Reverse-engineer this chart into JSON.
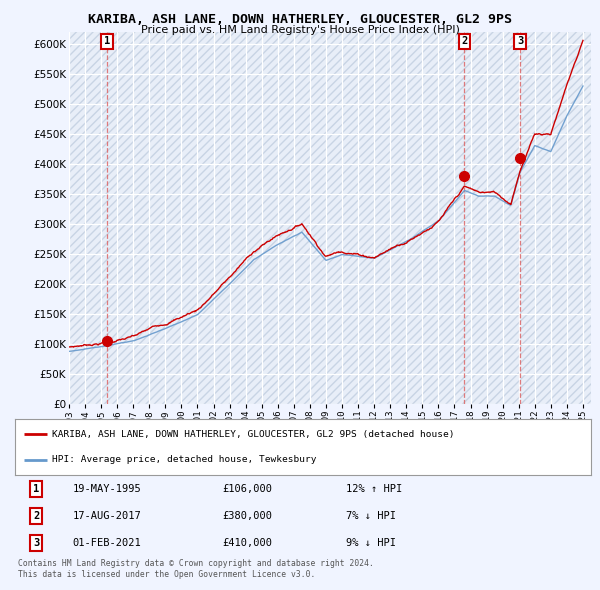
{
  "title": "KARIBA, ASH LANE, DOWN HATHERLEY, GLOUCESTER, GL2 9PS",
  "subtitle": "Price paid vs. HM Land Registry's House Price Index (HPI)",
  "background_color": "#f0f4ff",
  "plot_bg_color": "#e8eef8",
  "hatch_color": "#c8d4e4",
  "grid_color": "#ffffff",
  "sale_prices": [
    106000,
    380000,
    410000
  ],
  "sale_labels": [
    "1",
    "2",
    "3"
  ],
  "sale_year_floats": [
    1995.38,
    2017.62,
    2021.08
  ],
  "sale_info": [
    {
      "label": "1",
      "date": "19-MAY-1995",
      "price": "£106,000",
      "hpi": "12% ↑ HPI"
    },
    {
      "label": "2",
      "date": "17-AUG-2017",
      "price": "£380,000",
      "hpi": "7% ↓ HPI"
    },
    {
      "label": "3",
      "date": "01-FEB-2021",
      "price": "£410,000",
      "hpi": "9% ↓ HPI"
    }
  ],
  "legend_line1": "KARIBA, ASH LANE, DOWN HATHERLEY, GLOUCESTER, GL2 9PS (detached house)",
  "legend_line2": "HPI: Average price, detached house, Tewkesbury",
  "footer": "Contains HM Land Registry data © Crown copyright and database right 2024.\nThis data is licensed under the Open Government Licence v3.0.",
  "ylim": [
    0,
    620000
  ],
  "yticks": [
    0,
    50000,
    100000,
    150000,
    200000,
    250000,
    300000,
    350000,
    400000,
    450000,
    500000,
    550000,
    600000
  ],
  "red_line_color": "#cc0000",
  "blue_line_color": "#6699cc",
  "sale_dot_color": "#cc0000",
  "dashed_line_color": "#dd6666",
  "xmin": 1993.0,
  "xmax": 2025.5
}
